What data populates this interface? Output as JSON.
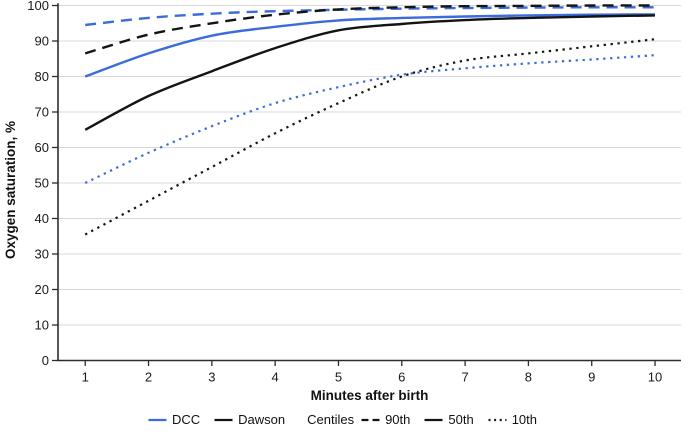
{
  "chart_data": {
    "type": "line",
    "title": "",
    "xlabel": "Minutes after birth",
    "ylabel": "Oxygen saturation, %",
    "x": [
      1,
      2,
      3,
      4,
      5,
      6,
      7,
      8,
      9,
      10
    ],
    "x_ticks": [
      1,
      2,
      3,
      4,
      5,
      6,
      7,
      8,
      9,
      10
    ],
    "y_ticks": [
      0,
      10,
      20,
      30,
      40,
      50,
      60,
      70,
      80,
      90,
      100
    ],
    "xlim": [
      0.57,
      10.41
    ],
    "ylim": [
      0,
      100
    ],
    "grid": "horizontal",
    "legend_position": "bottom",
    "series": [
      {
        "name": "DCC 90th centile",
        "group": "DCC",
        "centile": "90th",
        "color": "#3b6cd9",
        "style": "dashed",
        "values": [
          94.5,
          96.5,
          97.7,
          98.4,
          98.8,
          99.1,
          99.3,
          99.4,
          99.5,
          99.5
        ]
      },
      {
        "name": "Dawson 90th centile",
        "group": "Dawson",
        "centile": "90th",
        "color": "#141414",
        "style": "dashed",
        "values": [
          86.5,
          91.8,
          95.0,
          97.4,
          98.9,
          99.5,
          99.8,
          99.9,
          100,
          100
        ]
      },
      {
        "name": "DCC 50th centile",
        "group": "DCC",
        "centile": "50th",
        "color": "#3b6cd9",
        "style": "solid",
        "values": [
          80.0,
          86.5,
          91.5,
          94.0,
          95.8,
          96.5,
          96.9,
          97.2,
          97.4,
          97.5
        ]
      },
      {
        "name": "Dawson 50th centile",
        "group": "Dawson",
        "centile": "50th",
        "color": "#141414",
        "style": "solid",
        "values": [
          65.0,
          74.5,
          81.5,
          88.0,
          93.0,
          94.8,
          95.9,
          96.5,
          96.9,
          97.2
        ]
      },
      {
        "name": "DCC 10th centile",
        "group": "DCC",
        "centile": "10th",
        "color": "#3b6cd9",
        "style": "dotted",
        "values": [
          50.0,
          58.5,
          66.0,
          72.5,
          77.0,
          80.5,
          82.3,
          83.7,
          84.8,
          86.0
        ]
      },
      {
        "name": "Dawson 10th centile",
        "group": "Dawson",
        "centile": "10th",
        "color": "#141414",
        "style": "dotted",
        "values": [
          35.5,
          45.0,
          54.5,
          64.0,
          72.5,
          80.0,
          84.5,
          86.5,
          88.5,
          90.5
        ]
      }
    ]
  },
  "legend": {
    "items": [
      {
        "label": "DCC",
        "style": "solid",
        "color": "#3b6cd9"
      },
      {
        "label": "Dawson",
        "style": "solid",
        "color": "#141414"
      },
      {
        "label": "Centiles",
        "style": "none",
        "color": ""
      },
      {
        "label": "90th",
        "style": "dashed",
        "color": "#141414"
      },
      {
        "label": "50th",
        "style": "solid",
        "color": "#141414"
      },
      {
        "label": "10th",
        "style": "dotted",
        "color": "#141414"
      }
    ]
  },
  "colors": {
    "dcc_blue": "#3b6cd9",
    "dawson_black": "#141414",
    "grid": "#d8d8d8",
    "axis": "#2d2d2d",
    "text": "#1a1a1a"
  }
}
